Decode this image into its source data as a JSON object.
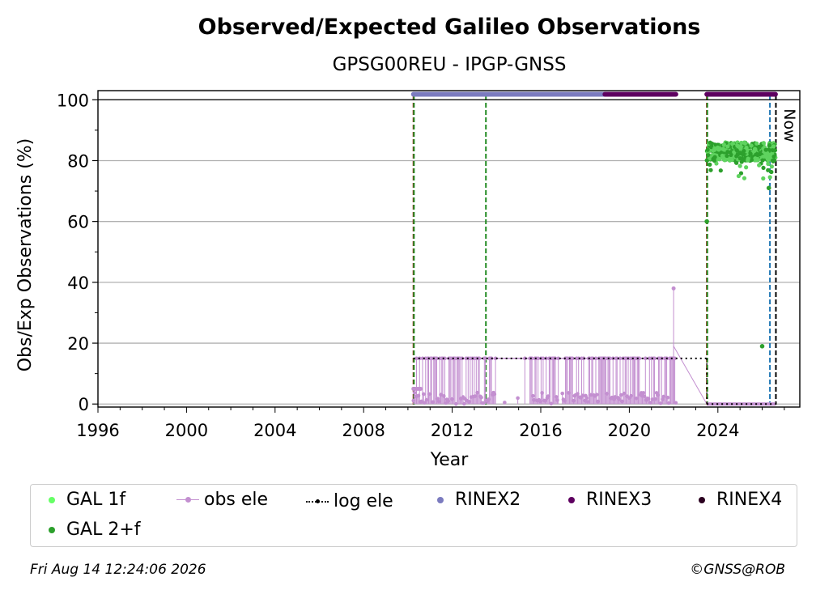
{
  "chart_data": {
    "type": "scatter",
    "title": "Observed/Expected Galileo Observations",
    "subtitle": "GPSG00REU - IPGP-GNSS",
    "xlabel": "Year",
    "ylabel": "Obs/Exp Observations (%)",
    "xlim": [
      1996,
      2027.7
    ],
    "ylim": [
      -1,
      103
    ],
    "x_ticks": [
      "1996",
      "2000",
      "2004",
      "2008",
      "2012",
      "2016",
      "2020",
      "2024"
    ],
    "y_ticks": [
      "0",
      "20",
      "40",
      "60",
      "80",
      "100"
    ],
    "grid": "horizontal",
    "legend_placement": "below",
    "now_label": "Now",
    "now_date": 2026.62,
    "vertical_lines": [
      {
        "x": 2010.25,
        "color": "#b22222",
        "style": "dashed"
      },
      {
        "x": 2010.25,
        "color": "#228b22",
        "style": "dashed"
      },
      {
        "x": 2013.5,
        "color": "#228b22",
        "style": "dashed"
      },
      {
        "x": 2023.5,
        "color": "#b22222",
        "style": "dashed"
      },
      {
        "x": 2023.5,
        "color": "#228b22",
        "style": "dashed"
      },
      {
        "x": 2026.35,
        "color": "#1f77b4",
        "style": "dashed"
      },
      {
        "x": 2026.62,
        "color": "#000000",
        "style": "dashed"
      }
    ],
    "rinex_bars": [
      {
        "name": "RINEX2",
        "x_start": 2010.25,
        "x_end": 2018.9,
        "y": 101.8,
        "color": "#7b7bbf"
      },
      {
        "name": "RINEX3",
        "x_start": 2018.9,
        "x_end": 2022.1,
        "y": 101.8,
        "color": "#5e0060"
      },
      {
        "name": "RINEX3",
        "x_start": 2023.5,
        "x_end": 2026.6,
        "y": 101.8,
        "color": "#5e0060"
      }
    ],
    "log_ele": [
      {
        "x_start": 2010.25,
        "x_end": 2023.5,
        "y": 15
      },
      {
        "x_start": 2023.5,
        "x_end": 2026.6,
        "y": 0
      }
    ],
    "obs_ele_range": {
      "x_start": 2010.25,
      "x_end": 2022.1,
      "y_min": 0,
      "y_max": 15,
      "peak_x": 2022.0,
      "peak_y": 38
    },
    "gal_2f_range": {
      "x_start": 2023.5,
      "x_end": 2026.6,
      "y_center": 83,
      "y_spread": 3,
      "outlier_min": 74
    },
    "gal_2f_outliers": [
      {
        "x": 2023.5,
        "y": 60
      },
      {
        "x": 2026.0,
        "y": 19
      },
      {
        "x": 2026.3,
        "y": 71
      }
    ],
    "legend": [
      {
        "name": "GAL 1f",
        "marker": "dot",
        "color": "#66ff66"
      },
      {
        "name": "obs ele",
        "marker": "line-dot",
        "color": "#c38fd0"
      },
      {
        "name": "log ele",
        "marker": "dotted-line",
        "color": "#000000"
      },
      {
        "name": "RINEX2",
        "marker": "dot",
        "color": "#7b7bbf"
      },
      {
        "name": "RINEX3",
        "marker": "dot",
        "color": "#5e0060"
      },
      {
        "name": "RINEX4",
        "marker": "dot",
        "color": "#2b0020"
      },
      {
        "name": "GAL 2+f",
        "marker": "dot",
        "color": "#2ca02c"
      }
    ]
  },
  "footer": {
    "timestamp": "Fri Aug 14 12:24:06 2026",
    "credit": "©GNSS@ROB"
  }
}
